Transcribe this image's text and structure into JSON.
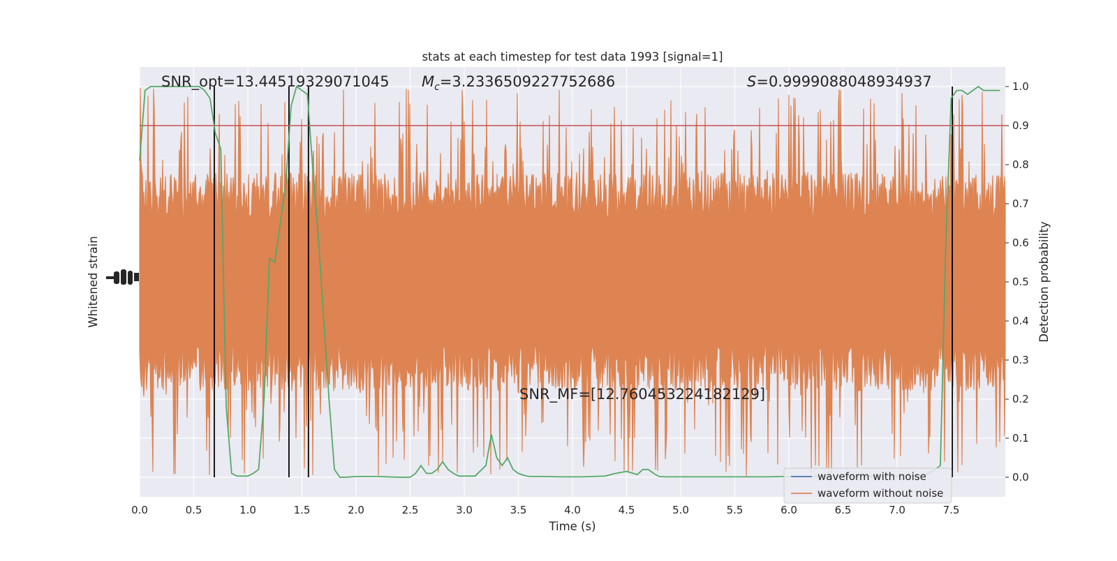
{
  "chart_data": {
    "type": "line",
    "title": "stats at each timestep for test data 1993 [signal=1]",
    "xlabel": "Time (s)",
    "ylabel_left": "Whitened strain",
    "ylabel_right": "Detection probability",
    "xlim": [
      0.0,
      8.0
    ],
    "ylim_right": [
      -0.05,
      1.05
    ],
    "x_ticks": [
      "0.0",
      "0.5",
      "1.0",
      "1.5",
      "2.0",
      "2.5",
      "3.0",
      "3.5",
      "4.0",
      "4.5",
      "5.0",
      "5.5",
      "6.0",
      "6.5",
      "7.0",
      "7.5"
    ],
    "x_tick_values": [
      0.0,
      0.5,
      1.0,
      1.5,
      2.0,
      2.5,
      3.0,
      3.5,
      4.0,
      4.5,
      5.0,
      5.5,
      6.0,
      6.5,
      7.0,
      7.5
    ],
    "y_right_ticks": [
      "0.0",
      "0.1",
      "0.2",
      "0.3",
      "0.4",
      "0.5",
      "0.6",
      "0.7",
      "0.8",
      "0.9",
      "1.0"
    ],
    "y_right_tick_values": [
      0.0,
      0.1,
      0.2,
      0.3,
      0.4,
      0.5,
      0.6,
      0.7,
      0.8,
      0.9,
      1.0
    ],
    "grid": true,
    "legend_position": "lower-right",
    "annotations": {
      "snr_opt": "SNR_opt=13.44519329071045",
      "mc_symbol": "M",
      "mc_subscript": "c",
      "mc_value": "=3.2336509227752686",
      "s_symbol": "S",
      "s_value": "=0.9999088048934937",
      "snr_mf": "SNR_MF=[12.760453224182129]"
    },
    "threshold": 0.9,
    "vertical_lines_x": [
      0.69,
      1.38,
      1.56,
      7.51
    ],
    "series": [
      {
        "name": "waveform with noise",
        "color": "#4c72b0",
        "note_values": "hidden behind orange series"
      },
      {
        "name": "waveform without noise",
        "color": "#dd8452",
        "band_center": 0.5,
        "band_typical_half_width": 0.28,
        "band_extreme_half_width": 0.5
      },
      {
        "color": "#55a868",
        "x": [
          0.0,
          0.05,
          0.1,
          0.2,
          0.3,
          0.4,
          0.5,
          0.55,
          0.6,
          0.65,
          0.7,
          0.75,
          0.8,
          0.85,
          0.9,
          0.95,
          1.0,
          1.05,
          1.1,
          1.15,
          1.2,
          1.25,
          1.3,
          1.35,
          1.4,
          1.45,
          1.5,
          1.55,
          1.6,
          1.65,
          1.7,
          1.75,
          1.8,
          1.85,
          1.9,
          2.0,
          2.2,
          2.4,
          2.5,
          2.55,
          2.6,
          2.65,
          2.7,
          2.75,
          2.8,
          2.85,
          2.9,
          2.95,
          3.0,
          3.1,
          3.2,
          3.25,
          3.3,
          3.35,
          3.4,
          3.45,
          3.5,
          3.55,
          3.6,
          3.7,
          3.9,
          4.1,
          4.3,
          4.4,
          4.5,
          4.6,
          4.65,
          4.7,
          4.75,
          4.8,
          4.85,
          5.0,
          5.2,
          5.5,
          5.8,
          6.0,
          6.3,
          6.6,
          6.9,
          7.2,
          7.3,
          7.35,
          7.4,
          7.45,
          7.5,
          7.55,
          7.6,
          7.65,
          7.7,
          7.75,
          7.8,
          7.85,
          7.9,
          7.95
        ],
        "y": [
          0.81,
          0.99,
          1.0,
          1.0,
          1.0,
          1.0,
          1.0,
          1.0,
          0.99,
          0.97,
          0.88,
          0.84,
          0.18,
          0.01,
          0.003,
          0.003,
          0.003,
          0.01,
          0.02,
          0.2,
          0.56,
          0.55,
          0.65,
          0.75,
          0.95,
          1.0,
          0.99,
          0.98,
          0.79,
          0.62,
          0.41,
          0.2,
          0.02,
          0.0,
          0.0,
          0.002,
          0.002,
          0.0,
          0.0,
          0.01,
          0.03,
          0.01,
          0.01,
          0.02,
          0.04,
          0.02,
          0.01,
          0.003,
          0.003,
          0.003,
          0.03,
          0.11,
          0.05,
          0.03,
          0.05,
          0.02,
          0.01,
          0.005,
          0.002,
          0.002,
          0.001,
          0.001,
          0.003,
          0.01,
          0.015,
          0.007,
          0.02,
          0.02,
          0.01,
          0.002,
          0.001,
          0.001,
          0.001,
          0.001,
          0.001,
          0.002,
          0.002,
          0.002,
          0.003,
          0.003,
          0.01,
          0.02,
          0.03,
          0.6,
          0.97,
          0.99,
          0.99,
          0.98,
          0.99,
          1.0,
          0.99,
          0.99,
          0.99,
          0.99
        ]
      }
    ]
  }
}
